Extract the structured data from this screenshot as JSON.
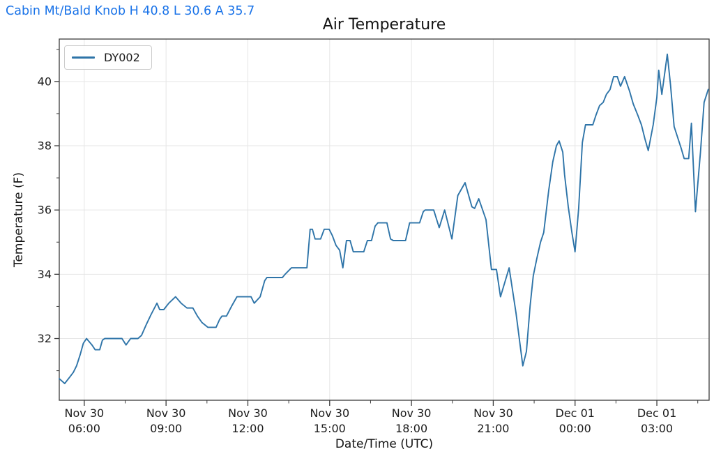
{
  "header": {
    "station_summary": "Cabin Mt/Bald Knob H 40.8 L 30.6 A 35.7",
    "station_name": "Cabin Mt/Bald Knob",
    "high": "40.8",
    "low": "30.6",
    "average": "35.7",
    "header_color": "#1a73e8"
  },
  "legend": {
    "series_label": "DY002",
    "position": "top-left"
  },
  "colors": {
    "line": "#2e74a8",
    "grid": "#e6e6e6",
    "spine": "#3b3b3b",
    "tick_text": "#1a1a1a",
    "title_text": "#141414"
  },
  "chart_data": {
    "type": "line",
    "title": "Air Temperature",
    "xlabel": "Date/Time (UTC)",
    "ylabel": "Temperature (F)",
    "grid": true,
    "legend_position": "upper left",
    "x_axis_note": "minutes measured from Nov 30 05:00 UTC",
    "xlim_minutes": [
      5,
      1435
    ],
    "ylim": [
      30.08,
      41.32
    ],
    "y_major_ticks": [
      32,
      34,
      36,
      38,
      40
    ],
    "y_minor_ticks": [
      31,
      33,
      35,
      37,
      39,
      41
    ],
    "x_major_ticks": [
      {
        "minutes": 60,
        "line1": "Nov 30",
        "line2": "06:00"
      },
      {
        "minutes": 240,
        "line1": "Nov 30",
        "line2": "09:00"
      },
      {
        "minutes": 420,
        "line1": "Nov 30",
        "line2": "12:00"
      },
      {
        "minutes": 600,
        "line1": "Nov 30",
        "line2": "15:00"
      },
      {
        "minutes": 780,
        "line1": "Nov 30",
        "line2": "18:00"
      },
      {
        "minutes": 960,
        "line1": "Nov 30",
        "line2": "21:00"
      },
      {
        "minutes": 1140,
        "line1": "Dec 01",
        "line2": "00:00"
      },
      {
        "minutes": 1320,
        "line1": "Dec 01",
        "line2": "03:00"
      }
    ],
    "x_minor_ticks_minutes": [
      150,
      330,
      510,
      690,
      870,
      1050,
      1230,
      1410
    ],
    "series": [
      {
        "name": "DY002",
        "color": "#2e74a8",
        "points": [
          [
            5,
            30.75
          ],
          [
            17,
            30.6
          ],
          [
            28,
            30.8
          ],
          [
            36,
            30.95
          ],
          [
            43,
            31.15
          ],
          [
            51,
            31.5
          ],
          [
            58,
            31.85
          ],
          [
            65,
            32.0
          ],
          [
            77,
            31.8
          ],
          [
            84,
            31.65
          ],
          [
            94,
            31.65
          ],
          [
            100,
            31.95
          ],
          [
            105,
            32.0
          ],
          [
            143,
            32.0
          ],
          [
            152,
            31.8
          ],
          [
            162,
            32.0
          ],
          [
            178,
            32.0
          ],
          [
            186,
            32.1
          ],
          [
            197,
            32.45
          ],
          [
            207,
            32.75
          ],
          [
            220,
            33.1
          ],
          [
            226,
            32.9
          ],
          [
            235,
            32.9
          ],
          [
            246,
            33.1
          ],
          [
            261,
            33.3
          ],
          [
            273,
            33.1
          ],
          [
            286,
            32.95
          ],
          [
            299,
            32.95
          ],
          [
            309,
            32.7
          ],
          [
            319,
            32.5
          ],
          [
            332,
            32.35
          ],
          [
            350,
            32.35
          ],
          [
            358,
            32.6
          ],
          [
            363,
            32.7
          ],
          [
            373,
            32.7
          ],
          [
            384,
            33.0
          ],
          [
            396,
            33.3
          ],
          [
            427,
            33.3
          ],
          [
            434,
            33.1
          ],
          [
            447,
            33.3
          ],
          [
            457,
            33.8
          ],
          [
            462,
            33.9
          ],
          [
            496,
            33.9
          ],
          [
            502,
            34.0
          ],
          [
            516,
            34.2
          ],
          [
            550,
            34.2
          ],
          [
            557,
            35.4
          ],
          [
            562,
            35.4
          ],
          [
            568,
            35.1
          ],
          [
            580,
            35.1
          ],
          [
            588,
            35.4
          ],
          [
            599,
            35.4
          ],
          [
            606,
            35.2
          ],
          [
            614,
            34.9
          ],
          [
            622,
            34.75
          ],
          [
            629,
            34.2
          ],
          [
            637,
            35.05
          ],
          [
            645,
            35.05
          ],
          [
            652,
            34.7
          ],
          [
            675,
            34.7
          ],
          [
            683,
            35.05
          ],
          [
            692,
            35.05
          ],
          [
            700,
            35.5
          ],
          [
            706,
            35.6
          ],
          [
            726,
            35.6
          ],
          [
            734,
            35.1
          ],
          [
            740,
            35.05
          ],
          [
            767,
            35.05
          ],
          [
            776,
            35.6
          ],
          [
            798,
            35.6
          ],
          [
            806,
            35.95
          ],
          [
            810,
            36.0
          ],
          [
            829,
            36.0
          ],
          [
            841,
            35.45
          ],
          [
            853,
            36.0
          ],
          [
            869,
            35.1
          ],
          [
            882,
            36.45
          ],
          [
            898,
            36.85
          ],
          [
            913,
            36.1
          ],
          [
            919,
            36.05
          ],
          [
            928,
            36.35
          ],
          [
            944,
            35.7
          ],
          [
            956,
            34.15
          ],
          [
            967,
            34.15
          ],
          [
            976,
            33.3
          ],
          [
            995,
            34.2
          ],
          [
            1010,
            32.8
          ],
          [
            1025,
            31.15
          ],
          [
            1033,
            31.6
          ],
          [
            1041,
            33.0
          ],
          [
            1048,
            33.95
          ],
          [
            1056,
            34.5
          ],
          [
            1064,
            35.0
          ],
          [
            1071,
            35.3
          ],
          [
            1082,
            36.6
          ],
          [
            1091,
            37.5
          ],
          [
            1099,
            38.0
          ],
          [
            1105,
            38.15
          ],
          [
            1113,
            37.8
          ],
          [
            1117,
            37.1
          ],
          [
            1125,
            36.1
          ],
          [
            1133,
            35.3
          ],
          [
            1140,
            34.7
          ],
          [
            1148,
            36.05
          ],
          [
            1156,
            38.1
          ],
          [
            1163,
            38.65
          ],
          [
            1179,
            38.65
          ],
          [
            1186,
            38.95
          ],
          [
            1194,
            39.25
          ],
          [
            1202,
            39.35
          ],
          [
            1209,
            39.6
          ],
          [
            1217,
            39.75
          ],
          [
            1225,
            40.15
          ],
          [
            1233,
            40.15
          ],
          [
            1240,
            39.85
          ],
          [
            1249,
            40.15
          ],
          [
            1260,
            39.7
          ],
          [
            1268,
            39.3
          ],
          [
            1278,
            38.95
          ],
          [
            1286,
            38.65
          ],
          [
            1294,
            38.2
          ],
          [
            1301,
            37.85
          ],
          [
            1312,
            38.65
          ],
          [
            1320,
            39.5
          ],
          [
            1324,
            40.35
          ],
          [
            1331,
            39.6
          ],
          [
            1343,
            40.85
          ],
          [
            1350,
            39.9
          ],
          [
            1358,
            38.6
          ],
          [
            1366,
            38.25
          ],
          [
            1374,
            37.9
          ],
          [
            1380,
            37.6
          ],
          [
            1390,
            37.6
          ],
          [
            1396,
            38.7
          ],
          [
            1405,
            35.95
          ],
          [
            1416,
            37.8
          ],
          [
            1424,
            39.35
          ],
          [
            1433,
            39.75
          ]
        ]
      }
    ]
  }
}
